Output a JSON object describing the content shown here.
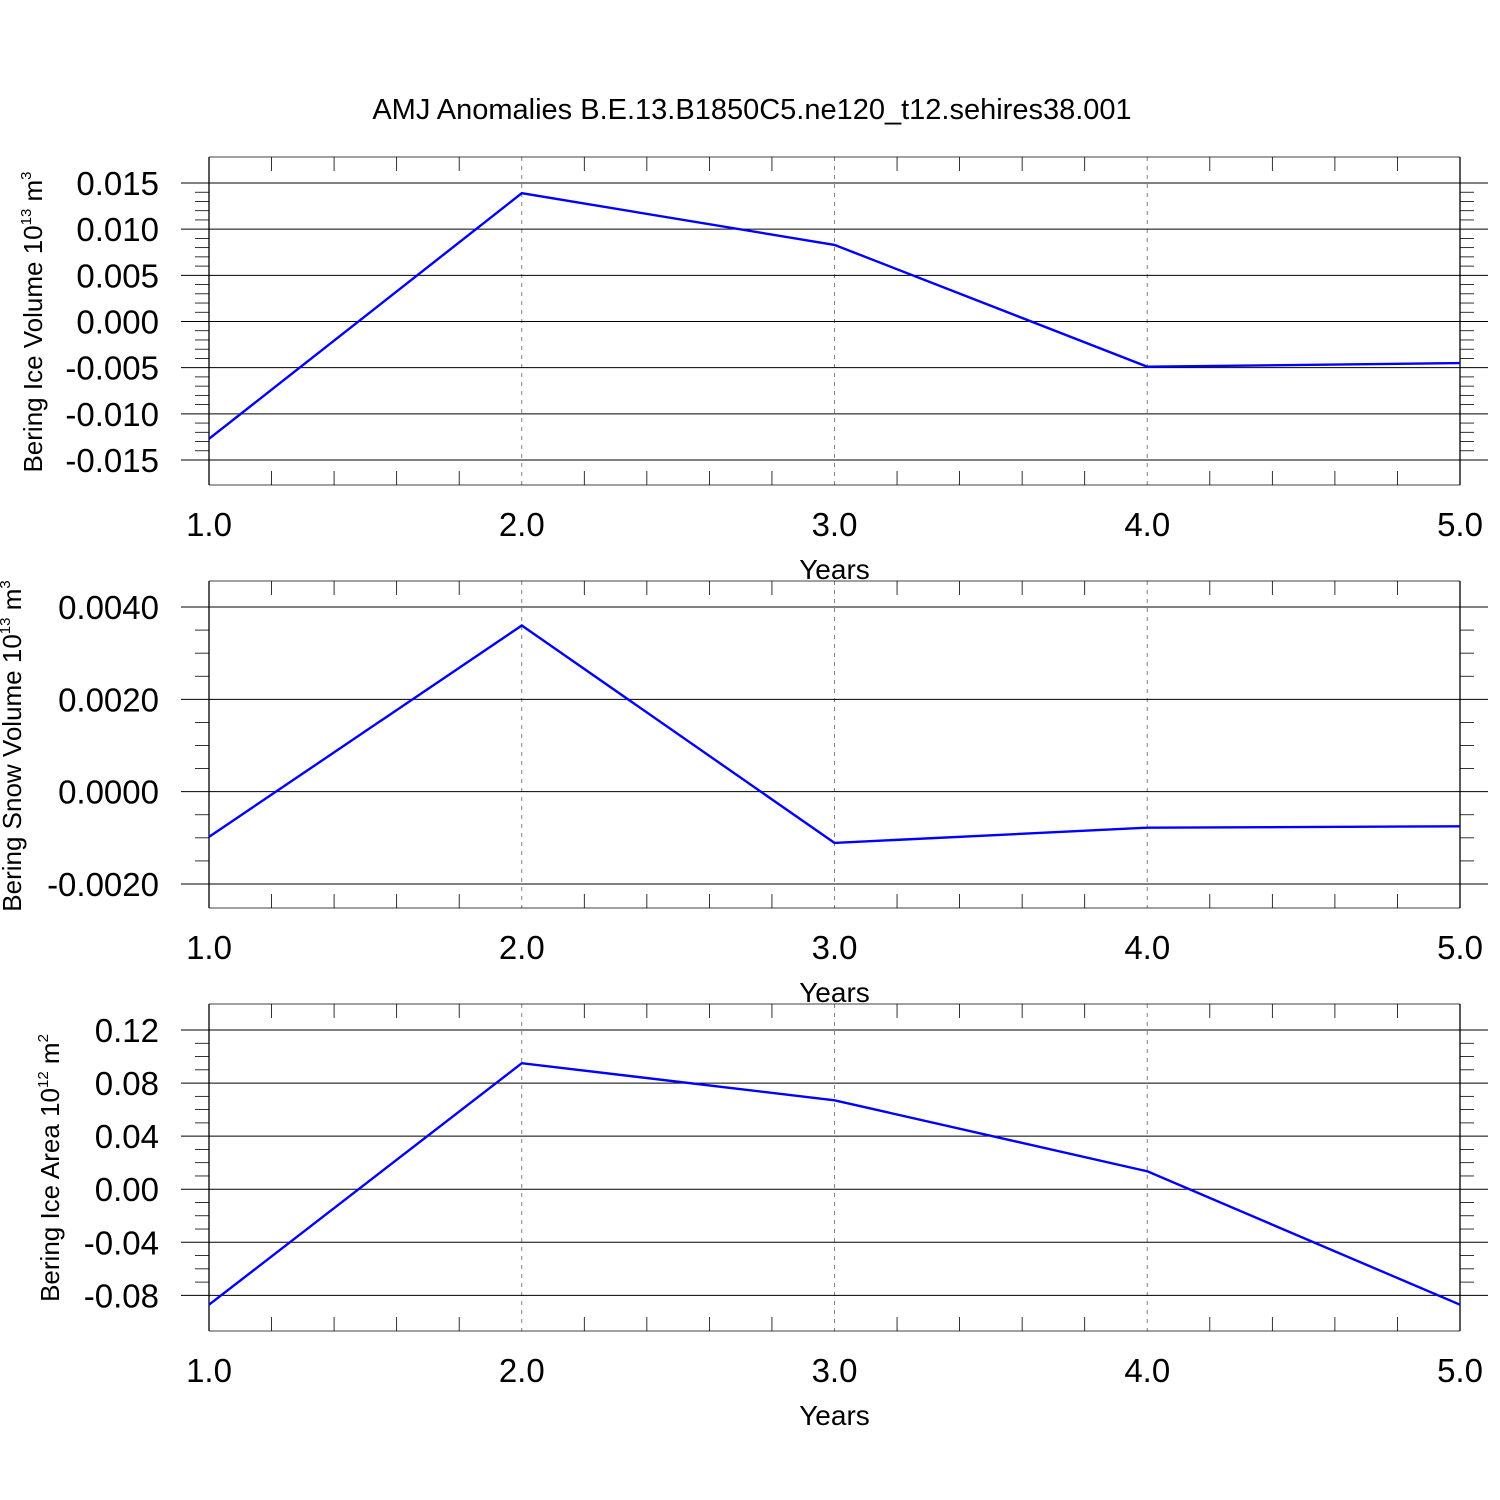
{
  "title": "AMJ Anomalies B.E.13.B1850C5.ne120_t12.sehires38.001",
  "colors": {
    "line": "#0000ff",
    "axis": "#000000",
    "grid": "#808080"
  },
  "chart_data": [
    {
      "type": "line",
      "ylabel": "Bering Ice Volume 10",
      "ylabel_exp": "13",
      "ylabel_unit": " m",
      "ylabel_unit_exp": "3",
      "xlabel": "Years",
      "x": [
        1.0,
        2.0,
        3.0,
        4.0,
        5.0
      ],
      "x_ticks": [
        "1.0",
        "2.0",
        "3.0",
        "4.0",
        "5.0"
      ],
      "xlim": [
        1.0,
        5.0
      ],
      "ylim": [
        -0.015,
        0.015
      ],
      "y_tick_values": [
        0.015,
        0.01,
        0.005,
        0.0,
        -0.005,
        -0.01,
        -0.015
      ],
      "y_ticks": [
        "0.015",
        "0.010",
        "0.005",
        "0.000",
        "-0.005",
        "-0.010",
        "-0.015"
      ],
      "y_minor_step": 0.001,
      "series": [
        {
          "values": [
            -0.0127,
            0.0139,
            0.0083,
            -0.0049,
            -0.0045
          ]
        }
      ],
      "grid": "vertical dashed at major x ticks"
    },
    {
      "type": "line",
      "ylabel": "Bering Snow Volume 10",
      "ylabel_exp": "13",
      "ylabel_unit": " m",
      "ylabel_unit_exp": "3",
      "xlabel": "Years",
      "x": [
        1.0,
        2.0,
        3.0,
        4.0,
        5.0
      ],
      "x_ticks": [
        "1.0",
        "2.0",
        "3.0",
        "4.0",
        "5.0"
      ],
      "xlim": [
        1.0,
        5.0
      ],
      "ylim": [
        -0.002,
        0.004
      ],
      "y_tick_values": [
        0.004,
        0.002,
        0.0,
        -0.002
      ],
      "y_ticks": [
        "0.0040",
        "0.0020",
        "0.0000",
        "-0.0020"
      ],
      "y_minor_step": 0.0005,
      "series": [
        {
          "values": [
            -0.00098,
            0.0036,
            -0.00111,
            -0.00078,
            -0.00075
          ]
        }
      ],
      "grid": "vertical dashed at major x ticks"
    },
    {
      "type": "line",
      "ylabel": "Bering Ice Area 10",
      "ylabel_exp": "12",
      "ylabel_unit": " m",
      "ylabel_unit_exp": "2",
      "xlabel": "Years",
      "x": [
        1.0,
        2.0,
        3.0,
        4.0,
        5.0
      ],
      "x_ticks": [
        "1.0",
        "2.0",
        "3.0",
        "4.0",
        "5.0"
      ],
      "xlim": [
        1.0,
        5.0
      ],
      "ylim": [
        -0.088,
        0.12
      ],
      "y_tick_values": [
        0.12,
        0.08,
        0.04,
        0.0,
        -0.04,
        -0.08
      ],
      "y_ticks": [
        "0.12",
        "0.08",
        "0.04",
        "0.00",
        "-0.04",
        "-0.08"
      ],
      "y_minor_step": 0.01,
      "series": [
        {
          "values": [
            -0.087,
            0.095,
            0.067,
            0.0135,
            -0.087
          ]
        }
      ],
      "grid": "vertical dashed at major x ticks"
    }
  ]
}
